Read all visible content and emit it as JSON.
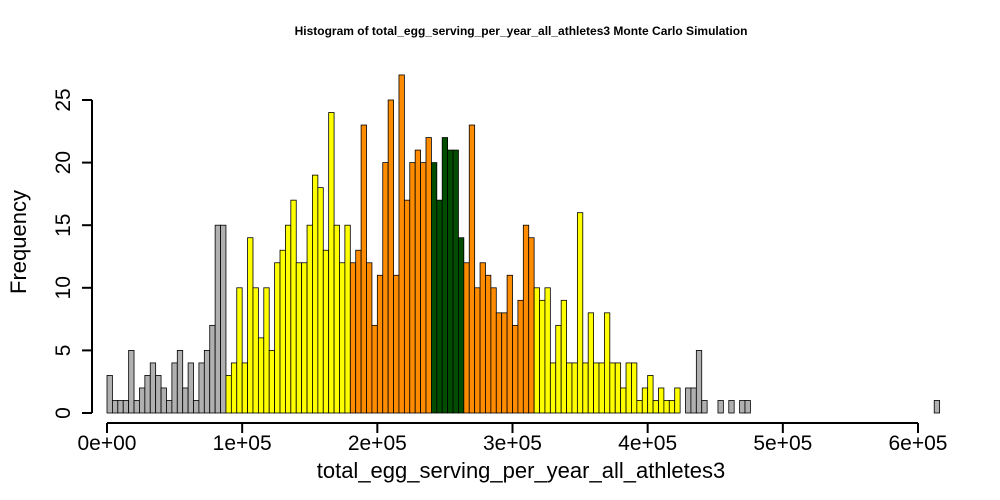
{
  "chart_data": {
    "type": "bar",
    "title": "Histogram of  total_egg_serving_per_year_all_athletes3  Monte Carlo Simulation",
    "xlabel": "total_egg_serving_per_year_all_athletes3",
    "ylabel": "Frequency",
    "xlim": [
      0,
      612000
    ],
    "ylim": [
      0,
      27
    ],
    "bin_width": 4000,
    "bin_start": 0,
    "x_ticks": [
      0,
      100000,
      200000,
      300000,
      400000,
      500000,
      600000
    ],
    "x_tick_labels": [
      "0e+00",
      "1e+05",
      "2e+05",
      "3e+05",
      "4e+05",
      "5e+05",
      "6e+05"
    ],
    "y_ticks": [
      0,
      5,
      10,
      15,
      20,
      25
    ],
    "y_tick_labels": [
      "0",
      "5",
      "10",
      "15",
      "20",
      "25"
    ],
    "grid": false,
    "colors": {
      "tail": "#b0b0b0",
      "outer": "#ffff00",
      "inner": "#ff8c00",
      "center": "#004d00"
    },
    "color_bands": [
      {
        "color_key": "tail",
        "from": 0,
        "to": 88000
      },
      {
        "color_key": "outer",
        "from": 88000,
        "to": 180000
      },
      {
        "color_key": "inner",
        "from": 180000,
        "to": 240000
      },
      {
        "color_key": "center",
        "from": 240000,
        "to": 264000
      },
      {
        "color_key": "inner",
        "from": 264000,
        "to": 316000
      },
      {
        "color_key": "outer",
        "from": 316000,
        "to": 424000
      },
      {
        "color_key": "tail",
        "from": 424000,
        "to": 612000
      }
    ],
    "values": [
      3,
      1,
      1,
      1,
      5,
      1,
      2,
      3,
      4,
      3,
      2,
      1,
      4,
      5,
      2,
      4,
      1,
      4,
      5,
      7,
      15,
      15,
      3,
      4,
      10,
      4,
      14,
      10,
      6,
      10,
      5,
      12,
      13,
      15,
      17,
      12,
      12,
      15,
      19,
      18,
      13,
      24,
      15,
      12,
      15,
      12,
      13,
      23,
      12,
      7,
      11,
      20,
      25,
      11,
      27,
      17,
      20,
      21,
      20,
      22,
      20,
      17,
      22,
      21,
      21,
      14,
      12,
      23,
      10,
      12,
      11,
      10,
      8,
      8,
      11,
      7,
      9,
      15,
      14,
      10,
      9,
      10,
      4,
      7,
      9,
      4,
      4,
      16,
      4,
      8,
      4,
      4,
      8,
      4,
      4,
      2,
      4,
      4,
      1,
      2,
      3,
      1,
      2,
      1,
      1,
      2,
      0,
      2,
      2,
      5,
      1,
      0,
      0,
      1,
      0,
      1,
      0,
      1,
      1,
      0,
      0,
      0,
      0,
      0,
      0,
      0,
      0,
      0,
      0,
      0,
      0,
      0,
      0,
      0,
      0,
      0,
      0,
      0,
      0,
      0,
      0,
      0,
      0,
      0,
      0,
      0,
      0,
      0,
      0,
      0,
      0,
      0,
      0,
      1
    ]
  }
}
